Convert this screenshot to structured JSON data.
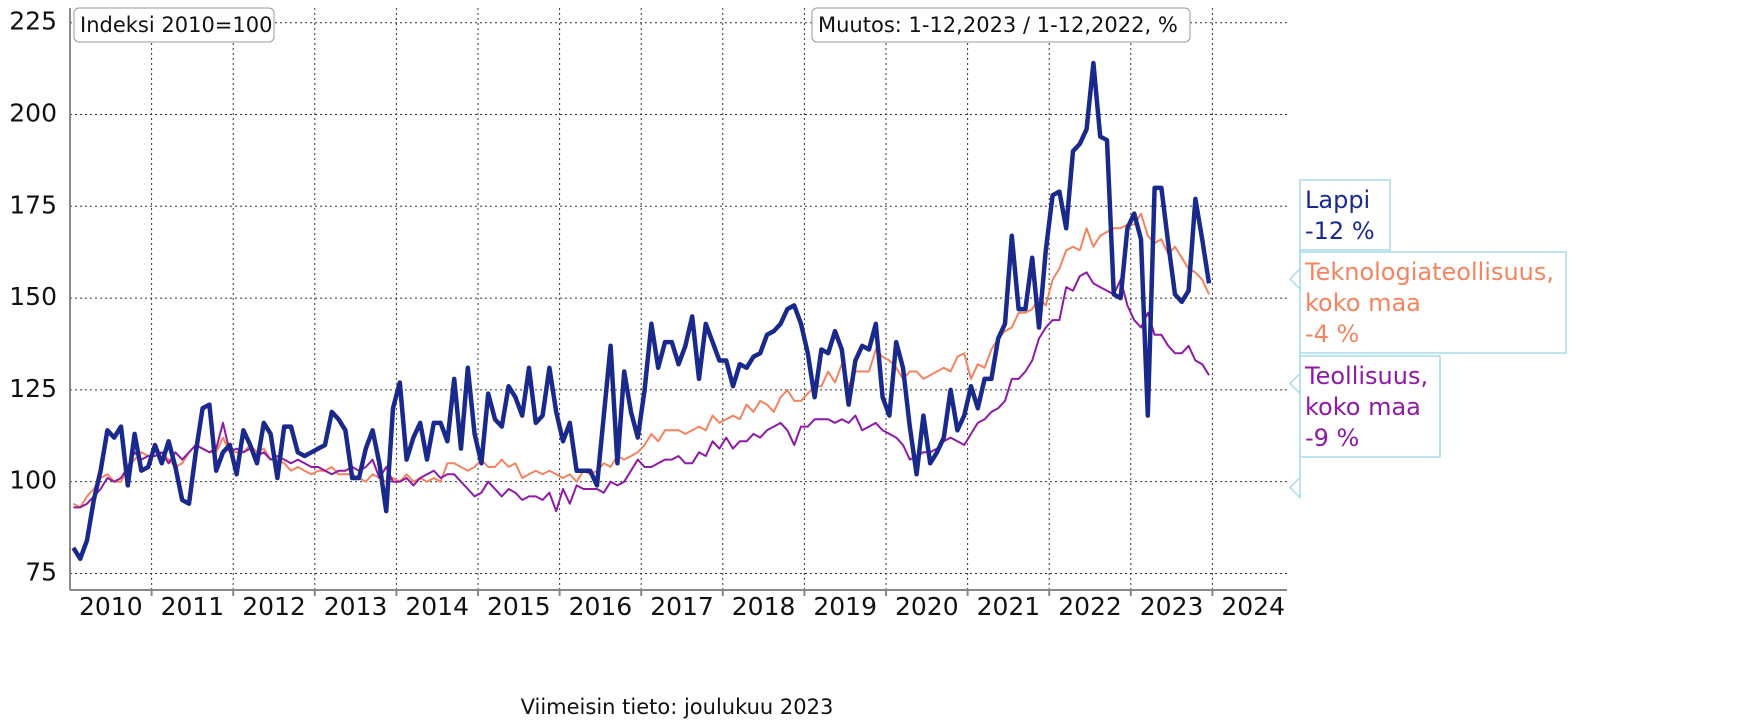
{
  "chart_data": {
    "type": "line",
    "index_note": "Indeksi 2010=100",
    "change_note": "Muutos: 1-12,2023 / 1-12,2022, %",
    "footer": "Viimeisin tieto: joulukuu 2023",
    "xlim": [
      2010,
      2025
    ],
    "ylim": [
      70.5,
      229
    ],
    "yticks": [
      75,
      100,
      125,
      150,
      175,
      200,
      225
    ],
    "xgrid": [
      2011,
      2012,
      2013,
      2014,
      2015,
      2016,
      2017,
      2018,
      2019,
      2020,
      2021,
      2022,
      2023,
      2024
    ],
    "xticks": [
      {
        "value": 2010.5,
        "label": "2010"
      },
      {
        "value": 2011.5,
        "label": "2011"
      },
      {
        "value": 2012.5,
        "label": "2012"
      },
      {
        "value": 2013.5,
        "label": "2013"
      },
      {
        "value": 2014.5,
        "label": "2014"
      },
      {
        "value": 2015.5,
        "label": "2015"
      },
      {
        "value": 2016.5,
        "label": "2016"
      },
      {
        "value": 2017.5,
        "label": "2017"
      },
      {
        "value": 2018.5,
        "label": "2018"
      },
      {
        "value": 2019.5,
        "label": "2019"
      },
      {
        "value": 2020.5,
        "label": "2020"
      },
      {
        "value": 2021.5,
        "label": "2021"
      },
      {
        "value": 2022.5,
        "label": "2022"
      },
      {
        "value": 2023.5,
        "label": "2023"
      },
      {
        "value": 2024.5,
        "label": "2024"
      }
    ],
    "grid": true,
    "x": [
      "2010-01",
      "2010-02",
      "2010-03",
      "2010-04",
      "2010-05",
      "2010-06",
      "2010-07",
      "2010-08",
      "2010-09",
      "2010-10",
      "2010-11",
      "2010-12",
      "2011-01",
      "2011-02",
      "2011-03",
      "2011-04",
      "2011-05",
      "2011-06",
      "2011-07",
      "2011-08",
      "2011-09",
      "2011-10",
      "2011-11",
      "2011-12",
      "2012-01",
      "2012-02",
      "2012-03",
      "2012-04",
      "2012-05",
      "2012-06",
      "2012-07",
      "2012-08",
      "2012-09",
      "2012-10",
      "2012-11",
      "2012-12",
      "2013-01",
      "2013-02",
      "2013-03",
      "2013-04",
      "2013-05",
      "2013-06",
      "2013-07",
      "2013-08",
      "2013-09",
      "2013-10",
      "2013-11",
      "2013-12",
      "2014-01",
      "2014-02",
      "2014-03",
      "2014-04",
      "2014-05",
      "2014-06",
      "2014-07",
      "2014-08",
      "2014-09",
      "2014-10",
      "2014-11",
      "2014-12",
      "2015-01",
      "2015-02",
      "2015-03",
      "2015-04",
      "2015-05",
      "2015-06",
      "2015-07",
      "2015-08",
      "2015-09",
      "2015-10",
      "2015-11",
      "2015-12",
      "2016-01",
      "2016-02",
      "2016-03",
      "2016-04",
      "2016-05",
      "2016-06",
      "2016-07",
      "2016-08",
      "2016-09",
      "2016-10",
      "2016-11",
      "2016-12",
      "2017-01",
      "2017-02",
      "2017-03",
      "2017-04",
      "2017-05",
      "2017-06",
      "2017-07",
      "2017-08",
      "2017-09",
      "2017-10",
      "2017-11",
      "2017-12",
      "2018-01",
      "2018-02",
      "2018-03",
      "2018-04",
      "2018-05",
      "2018-06",
      "2018-07",
      "2018-08",
      "2018-09",
      "2018-10",
      "2018-11",
      "2018-12",
      "2019-01",
      "2019-02",
      "2019-03",
      "2019-04",
      "2019-05",
      "2019-06",
      "2019-07",
      "2019-08",
      "2019-09",
      "2019-10",
      "2019-11",
      "2019-12",
      "2020-01",
      "2020-02",
      "2020-03",
      "2020-04",
      "2020-05",
      "2020-06",
      "2020-07",
      "2020-08",
      "2020-09",
      "2020-10",
      "2020-11",
      "2020-12",
      "2021-01",
      "2021-02",
      "2021-03",
      "2021-04",
      "2021-05",
      "2021-06",
      "2021-07",
      "2021-08",
      "2021-09",
      "2021-10",
      "2021-11",
      "2021-12",
      "2022-01",
      "2022-02",
      "2022-03",
      "2022-04",
      "2022-05",
      "2022-06",
      "2022-07",
      "2022-08",
      "2022-09",
      "2022-10",
      "2022-11",
      "2022-12",
      "2023-01",
      "2023-02",
      "2023-03",
      "2023-04",
      "2023-05",
      "2023-06",
      "2023-07",
      "2023-08",
      "2023-09",
      "2023-10",
      "2023-11",
      "2023-12"
    ],
    "series": [
      {
        "name_lines": [
          "Teknologiateollisuus,",
          "koko maa"
        ],
        "change": "-4 %",
        "color": "#f4845f",
        "width": 2,
        "values": [
          94,
          93,
          96,
          98,
          101,
          102,
          100,
          100,
          104,
          106,
          108,
          107,
          107,
          108,
          106,
          104,
          105,
          108,
          110,
          109,
          108,
          108,
          112,
          108,
          108,
          108,
          110,
          108,
          109,
          106,
          106,
          105,
          103,
          104,
          103,
          102,
          103,
          103,
          104,
          102,
          102,
          102,
          101,
          100,
          102,
          101,
          100,
          101,
          100,
          102,
          100,
          101,
          100,
          101,
          100,
          105,
          105,
          104,
          103,
          104,
          106,
          104,
          104,
          106,
          104,
          105,
          101,
          102,
          103,
          102,
          103,
          102,
          101,
          102,
          100,
          103,
          102,
          103,
          105,
          104,
          107,
          106,
          107,
          108,
          110,
          113,
          111,
          114,
          114,
          114,
          113,
          114,
          115,
          114,
          118,
          116,
          117,
          118,
          117,
          121,
          119,
          122,
          121,
          119,
          123,
          125,
          122,
          122,
          124,
          126,
          126,
          130,
          127,
          132,
          126,
          130,
          130,
          130,
          136,
          134,
          133,
          131,
          128,
          130,
          130,
          128,
          129,
          130,
          131,
          130,
          134,
          135,
          128,
          132,
          131,
          136,
          139,
          141,
          142,
          146,
          146,
          147,
          150,
          148,
          155,
          158,
          163,
          164,
          163,
          169,
          164,
          167,
          168,
          169,
          169,
          170,
          170,
          173,
          167,
          165,
          166,
          162,
          164,
          161,
          158,
          157,
          155,
          151
        ]
      },
      {
        "name_lines": [
          "Teollisuus,",
          "koko maa"
        ],
        "change": "-9 %",
        "color": "#8e1aa6",
        "width": 2,
        "values": [
          93,
          93,
          94,
          96,
          98,
          101,
          100,
          101,
          104,
          108,
          106,
          107,
          107,
          108,
          105,
          108,
          106,
          108,
          110,
          109,
          108,
          109,
          116,
          108,
          109,
          108,
          109,
          107,
          108,
          106,
          107,
          106,
          105,
          106,
          105,
          104,
          104,
          103,
          102,
          103,
          103,
          104,
          103,
          104,
          106,
          101,
          104,
          100,
          100,
          101,
          99,
          101,
          102,
          103,
          101,
          102,
          102,
          100,
          98,
          96,
          97,
          100,
          98,
          96,
          98,
          97,
          95,
          96,
          96,
          95,
          97,
          92,
          98,
          94,
          99,
          98,
          98,
          98,
          97,
          100,
          99,
          100,
          103,
          106,
          104,
          104,
          105,
          106,
          106,
          107,
          105,
          105,
          108,
          107,
          111,
          109,
          112,
          109,
          111,
          111,
          113,
          112,
          114,
          115,
          116,
          114,
          110,
          115,
          115,
          117,
          117,
          117,
          116,
          117,
          116,
          118,
          114,
          115,
          116,
          114,
          113,
          112,
          110,
          106,
          107,
          108,
          108,
          109,
          111,
          112,
          111,
          110,
          113,
          116,
          117,
          119,
          120,
          122,
          128,
          128,
          130,
          133,
          139,
          142,
          144,
          144,
          153,
          152,
          156,
          157,
          154,
          153,
          152,
          151,
          155,
          148,
          144,
          142,
          146,
          140,
          140,
          137,
          135,
          135,
          137,
          133,
          132,
          129
        ]
      },
      {
        "name_lines": [
          "Lappi"
        ],
        "change": "-12 %",
        "color": "#1a2a8c",
        "width": 4.5,
        "values": [
          82,
          79,
          84,
          95,
          103,
          114,
          112,
          115,
          99,
          113,
          103,
          104,
          110,
          105,
          111,
          104,
          95,
          94,
          108,
          120,
          121,
          103,
          108,
          110,
          102,
          114,
          110,
          105,
          116,
          113,
          101,
          115,
          115,
          108,
          107,
          108,
          109,
          110,
          119,
          117,
          114,
          101,
          101,
          109,
          114,
          105,
          92,
          120,
          127,
          106,
          112,
          116,
          106,
          116,
          116,
          111,
          128,
          109,
          131,
          113,
          105,
          124,
          117,
          115,
          126,
          123,
          118,
          131,
          116,
          118,
          131,
          119,
          111,
          116,
          103,
          103,
          103,
          99,
          118,
          137,
          105,
          130,
          119,
          112,
          125,
          143,
          131,
          138,
          138,
          132,
          137,
          145,
          128,
          143,
          138,
          133,
          133,
          126,
          132,
          131,
          134,
          135,
          140,
          141,
          143,
          147,
          148,
          143,
          135,
          123,
          136,
          135,
          141,
          136,
          121,
          133,
          137,
          136,
          143,
          123,
          118,
          138,
          131,
          115,
          102,
          118,
          105,
          108,
          112,
          125,
          114,
          118,
          126,
          120,
          128,
          128,
          139,
          143,
          167,
          147,
          147,
          161,
          142,
          163,
          178,
          179,
          169,
          190,
          192,
          196,
          214,
          194,
          193,
          151,
          150,
          169,
          173,
          166,
          118,
          180,
          180,
          165,
          151,
          149,
          152,
          177,
          166,
          154
        ]
      }
    ]
  }
}
